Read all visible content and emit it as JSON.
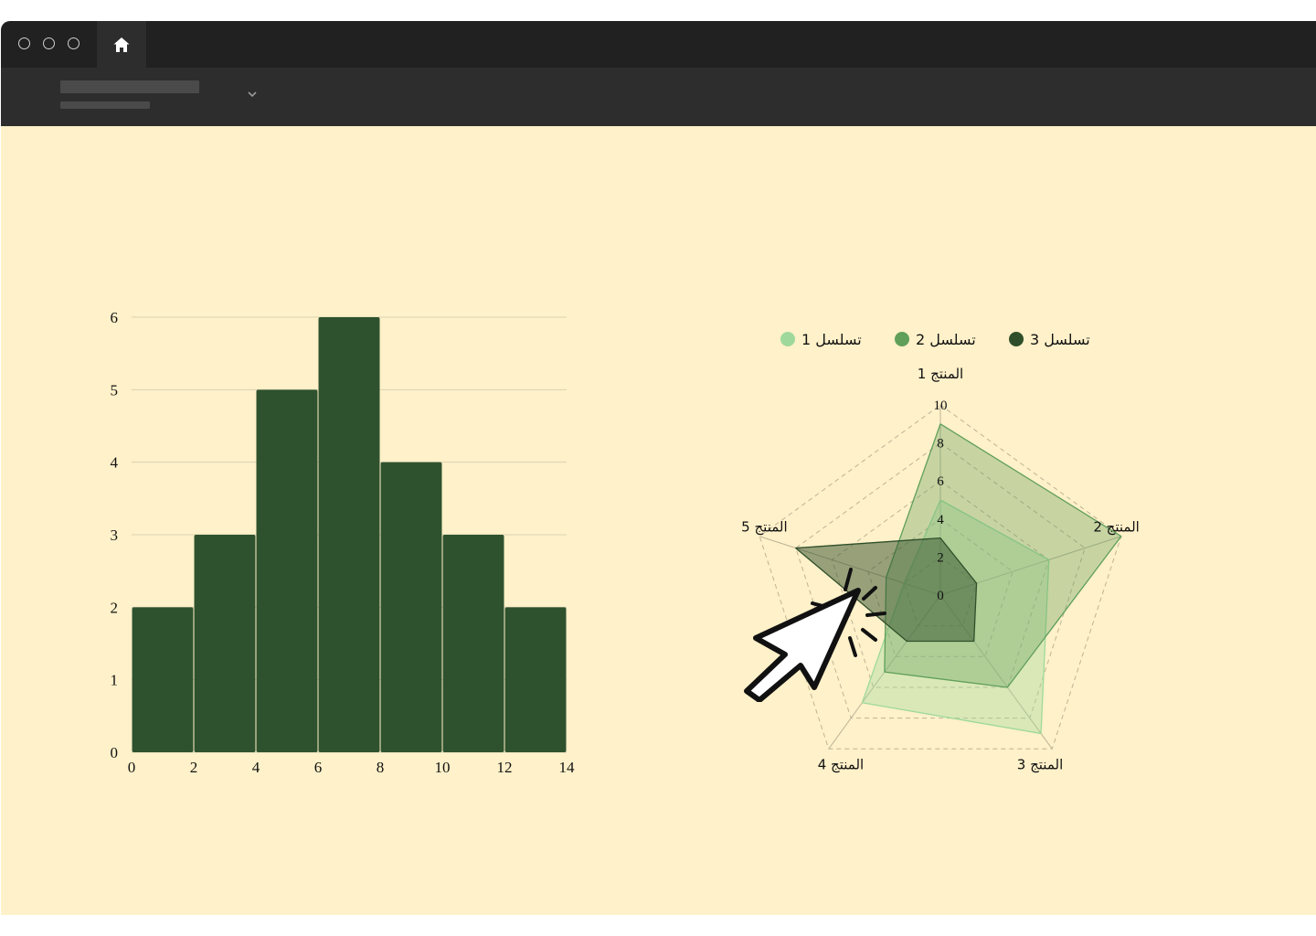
{
  "window": {
    "tabs": [
      {
        "icon": "home-icon"
      }
    ],
    "address_dropdown": {
      "icon": "chevron-down-icon"
    }
  },
  "colors": {
    "background": "#fff1c9",
    "histogram_bar": "#2f522e",
    "series_1": "#9ed99b",
    "series_2": "#5f9f5a",
    "series_3": "#2f4f2a"
  },
  "chart_data": [
    {
      "type": "bar",
      "subtype": "histogram",
      "bins": [
        {
          "x0": 0,
          "x1": 2,
          "count": 2
        },
        {
          "x0": 2,
          "x1": 4,
          "count": 3
        },
        {
          "x0": 4,
          "x1": 6,
          "count": 5
        },
        {
          "x0": 6,
          "x1": 8,
          "count": 6
        },
        {
          "x0": 8,
          "x1": 10,
          "count": 4
        },
        {
          "x0": 10,
          "x1": 12,
          "count": 3
        },
        {
          "x0": 12,
          "x1": 14,
          "count": 2
        }
      ],
      "xlim": [
        0,
        14
      ],
      "ylim": [
        0,
        6
      ],
      "xticks": [
        "0",
        "2",
        "4",
        "6",
        "8",
        "10",
        "12",
        "14"
      ],
      "yticks": [
        "0",
        "1",
        "2",
        "3",
        "4",
        "5",
        "6"
      ],
      "grid": "horizontal"
    },
    {
      "type": "radar",
      "axes": [
        "المنتج 1",
        "المنتج 2",
        "المنتج 3",
        "المنتج 4",
        "المنتج 5"
      ],
      "rlim": [
        0,
        10
      ],
      "rticks": [
        "0",
        "2",
        "4",
        "6",
        "8",
        "10"
      ],
      "legend_position": "top",
      "series": [
        {
          "name": "تسلسل 1",
          "values": [
            5,
            6,
            9,
            7,
            2
          ]
        },
        {
          "name": "تسلسل 2",
          "values": [
            9,
            10,
            6,
            5,
            3
          ]
        },
        {
          "name": "تسلسل 3",
          "values": [
            3,
            2,
            3,
            3,
            8
          ]
        }
      ]
    }
  ]
}
